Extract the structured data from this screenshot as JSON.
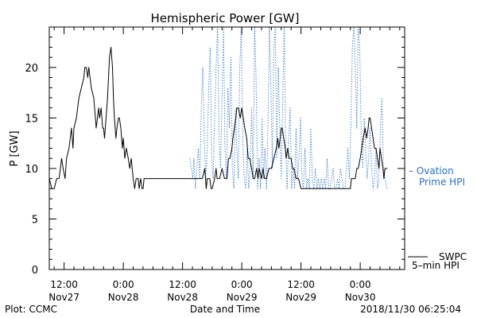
{
  "chart_data": {
    "type": "line",
    "title": "Hemispheric Power [GW]",
    "ylabel": "P [GW]",
    "xlabel": "Date and Time",
    "ylim": [
      0,
      24
    ],
    "xlim": [
      -15,
      57
    ],
    "yticks": [
      {
        "v": 0,
        "label": "0"
      },
      {
        "v": 5,
        "label": "5"
      },
      {
        "v": 10,
        "label": "10"
      },
      {
        "v": 15,
        "label": "15"
      },
      {
        "v": 20,
        "label": "20"
      }
    ],
    "xticks": [
      {
        "t": -12,
        "l1": "12:00",
        "l2": "Nov27"
      },
      {
        "t": 0,
        "l1": "0:00",
        "l2": "Nov28"
      },
      {
        "t": 12,
        "l1": "12:00",
        "l2": "Nov28"
      },
      {
        "t": 24,
        "l1": "0:00",
        "l2": "Nov29"
      },
      {
        "t": 36,
        "l1": "12:00",
        "l2": "Nov29"
      },
      {
        "t": 48,
        "l1": "0:00",
        "l2": "Nov30"
      }
    ],
    "series": [
      {
        "name": "SWPC 5-min HPI",
        "color": "#000000",
        "points": [
          [
            -15.0,
            9
          ],
          [
            -14.5,
            8
          ],
          [
            -14.0,
            8
          ],
          [
            -13.5,
            9
          ],
          [
            -13.0,
            9
          ],
          [
            -12.5,
            11
          ],
          [
            -12.2,
            10
          ],
          [
            -11.8,
            9
          ],
          [
            -11.5,
            11
          ],
          [
            -11.0,
            12
          ],
          [
            -10.5,
            14
          ],
          [
            -10.2,
            12
          ],
          [
            -10.0,
            14
          ],
          [
            -9.5,
            15
          ],
          [
            -9.0,
            17
          ],
          [
            -8.5,
            18
          ],
          [
            -8.0,
            19
          ],
          [
            -7.8,
            20
          ],
          [
            -7.5,
            20
          ],
          [
            -7.2,
            19
          ],
          [
            -7.0,
            20
          ],
          [
            -6.5,
            18
          ],
          [
            -6.0,
            17
          ],
          [
            -5.5,
            14
          ],
          [
            -5.0,
            16
          ],
          [
            -4.8,
            15
          ],
          [
            -4.5,
            16
          ],
          [
            -4.2,
            14
          ],
          [
            -4.0,
            14
          ],
          [
            -3.8,
            13
          ],
          [
            -3.5,
            15
          ],
          [
            -3.2,
            17
          ],
          [
            -3.0,
            19
          ],
          [
            -2.8,
            21
          ],
          [
            -2.5,
            22
          ],
          [
            -2.2,
            20
          ],
          [
            -2.0,
            17
          ],
          [
            -1.8,
            15
          ],
          [
            -1.5,
            13
          ],
          [
            -1.3,
            14
          ],
          [
            -1.0,
            15
          ],
          [
            -0.8,
            15
          ],
          [
            -0.5,
            14
          ],
          [
            -0.2,
            12
          ],
          [
            0.0,
            13
          ],
          [
            0.3,
            11
          ],
          [
            0.6,
            12
          ],
          [
            1.0,
            11
          ],
          [
            1.3,
            10
          ],
          [
            1.6,
            11
          ],
          [
            2.0,
            9
          ],
          [
            2.3,
            8
          ],
          [
            2.6,
            9
          ],
          [
            3.0,
            9
          ],
          [
            3.2,
            8
          ],
          [
            3.5,
            9
          ],
          [
            3.8,
            8
          ],
          [
            4.0,
            8
          ],
          [
            4.2,
            9
          ],
          [
            10.0,
            9
          ],
          [
            16.0,
            9
          ],
          [
            16.5,
            10
          ],
          [
            16.8,
            8
          ],
          [
            17.0,
            9
          ],
          [
            17.5,
            9
          ],
          [
            17.8,
            8
          ],
          [
            18.0,
            8
          ],
          [
            18.5,
            9
          ],
          [
            18.8,
            10
          ],
          [
            19.0,
            9
          ],
          [
            19.5,
            9
          ],
          [
            20.0,
            10
          ],
          [
            20.5,
            9
          ],
          [
            21.0,
            9
          ],
          [
            21.3,
            11
          ],
          [
            21.6,
            11
          ],
          [
            22.0,
            12
          ],
          [
            22.2,
            13
          ],
          [
            22.5,
            14
          ],
          [
            22.8,
            15
          ],
          [
            23.0,
            16
          ],
          [
            23.3,
            16
          ],
          [
            23.7,
            15
          ],
          [
            24.0,
            16
          ],
          [
            24.3,
            15
          ],
          [
            24.6,
            14
          ],
          [
            25.0,
            13
          ],
          [
            25.3,
            11
          ],
          [
            25.6,
            11
          ],
          [
            26.0,
            10
          ],
          [
            26.3,
            9
          ],
          [
            26.6,
            9
          ],
          [
            27.0,
            10
          ],
          [
            27.3,
            9
          ],
          [
            27.5,
            10
          ],
          [
            28.0,
            9
          ],
          [
            28.3,
            10
          ],
          [
            28.6,
            9
          ],
          [
            29.0,
            9
          ],
          [
            29.5,
            10
          ],
          [
            30.0,
            10
          ],
          [
            30.5,
            11
          ],
          [
            31.0,
            12
          ],
          [
            31.3,
            13
          ],
          [
            31.5,
            12
          ],
          [
            31.8,
            13
          ],
          [
            32.0,
            14
          ],
          [
            32.2,
            14
          ],
          [
            32.5,
            13
          ],
          [
            32.8,
            12
          ],
          [
            33.0,
            11
          ],
          [
            33.3,
            12
          ],
          [
            33.6,
            11
          ],
          [
            34.0,
            11
          ],
          [
            34.3,
            10
          ],
          [
            34.6,
            10
          ],
          [
            35.0,
            9
          ],
          [
            35.5,
            9
          ],
          [
            36.0,
            8
          ],
          [
            42.0,
            8
          ],
          [
            46.0,
            8
          ],
          [
            46.2,
            9
          ],
          [
            47.0,
            9
          ],
          [
            47.3,
            10
          ],
          [
            47.6,
            10
          ],
          [
            48.0,
            11
          ],
          [
            48.3,
            12
          ],
          [
            48.6,
            13
          ],
          [
            49.0,
            14
          ],
          [
            49.3,
            13
          ],
          [
            49.6,
            14
          ],
          [
            49.8,
            15
          ],
          [
            50.0,
            15
          ],
          [
            50.3,
            14
          ],
          [
            50.6,
            13
          ],
          [
            50.9,
            12
          ],
          [
            51.2,
            12
          ],
          [
            51.5,
            11
          ],
          [
            51.8,
            10
          ],
          [
            52.0,
            12
          ],
          [
            52.3,
            11
          ],
          [
            52.6,
            10
          ],
          [
            52.8,
            9
          ],
          [
            53.0,
            10
          ],
          [
            53.5,
            10
          ]
        ]
      },
      {
        "name": "Ovation Prime HPI",
        "color": "#2c6fc9",
        "points": [
          [
            13.5,
            11
          ],
          [
            13.8,
            10
          ],
          [
            14.1,
            9
          ],
          [
            14.3,
            11
          ],
          [
            14.6,
            8
          ],
          [
            14.9,
            10
          ],
          [
            15.2,
            12
          ],
          [
            15.5,
            9
          ],
          [
            15.8,
            16
          ],
          [
            16.1,
            20
          ],
          [
            16.4,
            13
          ],
          [
            16.7,
            9
          ],
          [
            17.0,
            12
          ],
          [
            17.3,
            18
          ],
          [
            17.6,
            22
          ],
          [
            17.9,
            11
          ],
          [
            18.2,
            9
          ],
          [
            18.5,
            15
          ],
          [
            18.8,
            20
          ],
          [
            19.1,
            24
          ],
          [
            19.4,
            13
          ],
          [
            19.7,
            10
          ],
          [
            20.0,
            17
          ],
          [
            20.3,
            24
          ],
          [
            20.6,
            12
          ],
          [
            20.9,
            9
          ],
          [
            21.2,
            18
          ],
          [
            21.5,
            14
          ],
          [
            21.8,
            21
          ],
          [
            22.1,
            10
          ],
          [
            22.4,
            8
          ],
          [
            22.7,
            16
          ],
          [
            23.0,
            12
          ],
          [
            23.3,
            9
          ],
          [
            23.6,
            20
          ],
          [
            23.9,
            24
          ],
          [
            24.2,
            13
          ],
          [
            24.5,
            9
          ],
          [
            24.8,
            8
          ],
          [
            25.1,
            12
          ],
          [
            25.4,
            8
          ],
          [
            25.7,
            10
          ],
          [
            26.0,
            16
          ],
          [
            26.3,
            9
          ],
          [
            26.6,
            24
          ],
          [
            26.9,
            19
          ],
          [
            27.2,
            8
          ],
          [
            27.5,
            11
          ],
          [
            27.8,
            8
          ],
          [
            28.1,
            15
          ],
          [
            28.4,
            9
          ],
          [
            28.7,
            12
          ],
          [
            29.0,
            8
          ],
          [
            29.3,
            14
          ],
          [
            29.6,
            24
          ],
          [
            29.9,
            18
          ],
          [
            30.2,
            10
          ],
          [
            30.5,
            22
          ],
          [
            30.8,
            24
          ],
          [
            31.1,
            11
          ],
          [
            31.4,
            20
          ],
          [
            31.7,
            14
          ],
          [
            32.0,
            9
          ],
          [
            32.3,
            17
          ],
          [
            32.6,
            24
          ],
          [
            32.9,
            12
          ],
          [
            33.2,
            8
          ],
          [
            33.5,
            13
          ],
          [
            33.8,
            16
          ],
          [
            34.1,
            8
          ],
          [
            34.4,
            10
          ],
          [
            34.7,
            8
          ],
          [
            35.0,
            14
          ],
          [
            35.3,
            9
          ],
          [
            35.6,
            11
          ],
          [
            35.9,
            15
          ],
          [
            36.2,
            9
          ],
          [
            36.5,
            8
          ],
          [
            36.8,
            12
          ],
          [
            37.1,
            8
          ],
          [
            37.4,
            9
          ],
          [
            37.7,
            8
          ],
          [
            38.0,
            14
          ],
          [
            38.3,
            9
          ],
          [
            38.6,
            8
          ],
          [
            38.9,
            10
          ],
          [
            39.2,
            8
          ],
          [
            39.5,
            9
          ],
          [
            39.8,
            8
          ],
          [
            40.1,
            9
          ],
          [
            40.4,
            8
          ],
          [
            40.7,
            9
          ],
          [
            41.0,
            8
          ],
          [
            41.3,
            11
          ],
          [
            41.6,
            8
          ],
          [
            41.9,
            8
          ],
          [
            42.2,
            9
          ],
          [
            42.5,
            10
          ],
          [
            42.8,
            8
          ],
          [
            43.1,
            8
          ],
          [
            43.4,
            9
          ],
          [
            43.7,
            8
          ],
          [
            44.0,
            10
          ],
          [
            44.3,
            9
          ],
          [
            44.6,
            8
          ],
          [
            44.9,
            8
          ],
          [
            45.2,
            10
          ],
          [
            45.5,
            12
          ],
          [
            45.8,
            9
          ],
          [
            46.1,
            14
          ],
          [
            46.4,
            22
          ],
          [
            46.7,
            24
          ],
          [
            47.0,
            20
          ],
          [
            47.3,
            14
          ],
          [
            47.6,
            24
          ],
          [
            47.9,
            22
          ],
          [
            48.2,
            13
          ],
          [
            48.5,
            10
          ],
          [
            48.8,
            15
          ],
          [
            49.1,
            12
          ],
          [
            49.4,
            9
          ],
          [
            49.7,
            11
          ],
          [
            50.0,
            14
          ],
          [
            50.3,
            10
          ],
          [
            50.6,
            8
          ],
          [
            50.9,
            9
          ],
          [
            51.2,
            12
          ],
          [
            51.5,
            8
          ],
          [
            51.8,
            9
          ],
          [
            52.1,
            14
          ],
          [
            52.4,
            17
          ],
          [
            52.7,
            10
          ],
          [
            53.0,
            9
          ],
          [
            53.4,
            8
          ]
        ]
      }
    ],
    "legend": {
      "blue_lines": [
        "– Ovation",
        "Prime HPI"
      ],
      "black_lines": [
        "SWPC",
        "5–min HPI"
      ]
    }
  },
  "footer": {
    "left": "Plot: CCMC",
    "right": "2018/11/30 06:25:04"
  }
}
